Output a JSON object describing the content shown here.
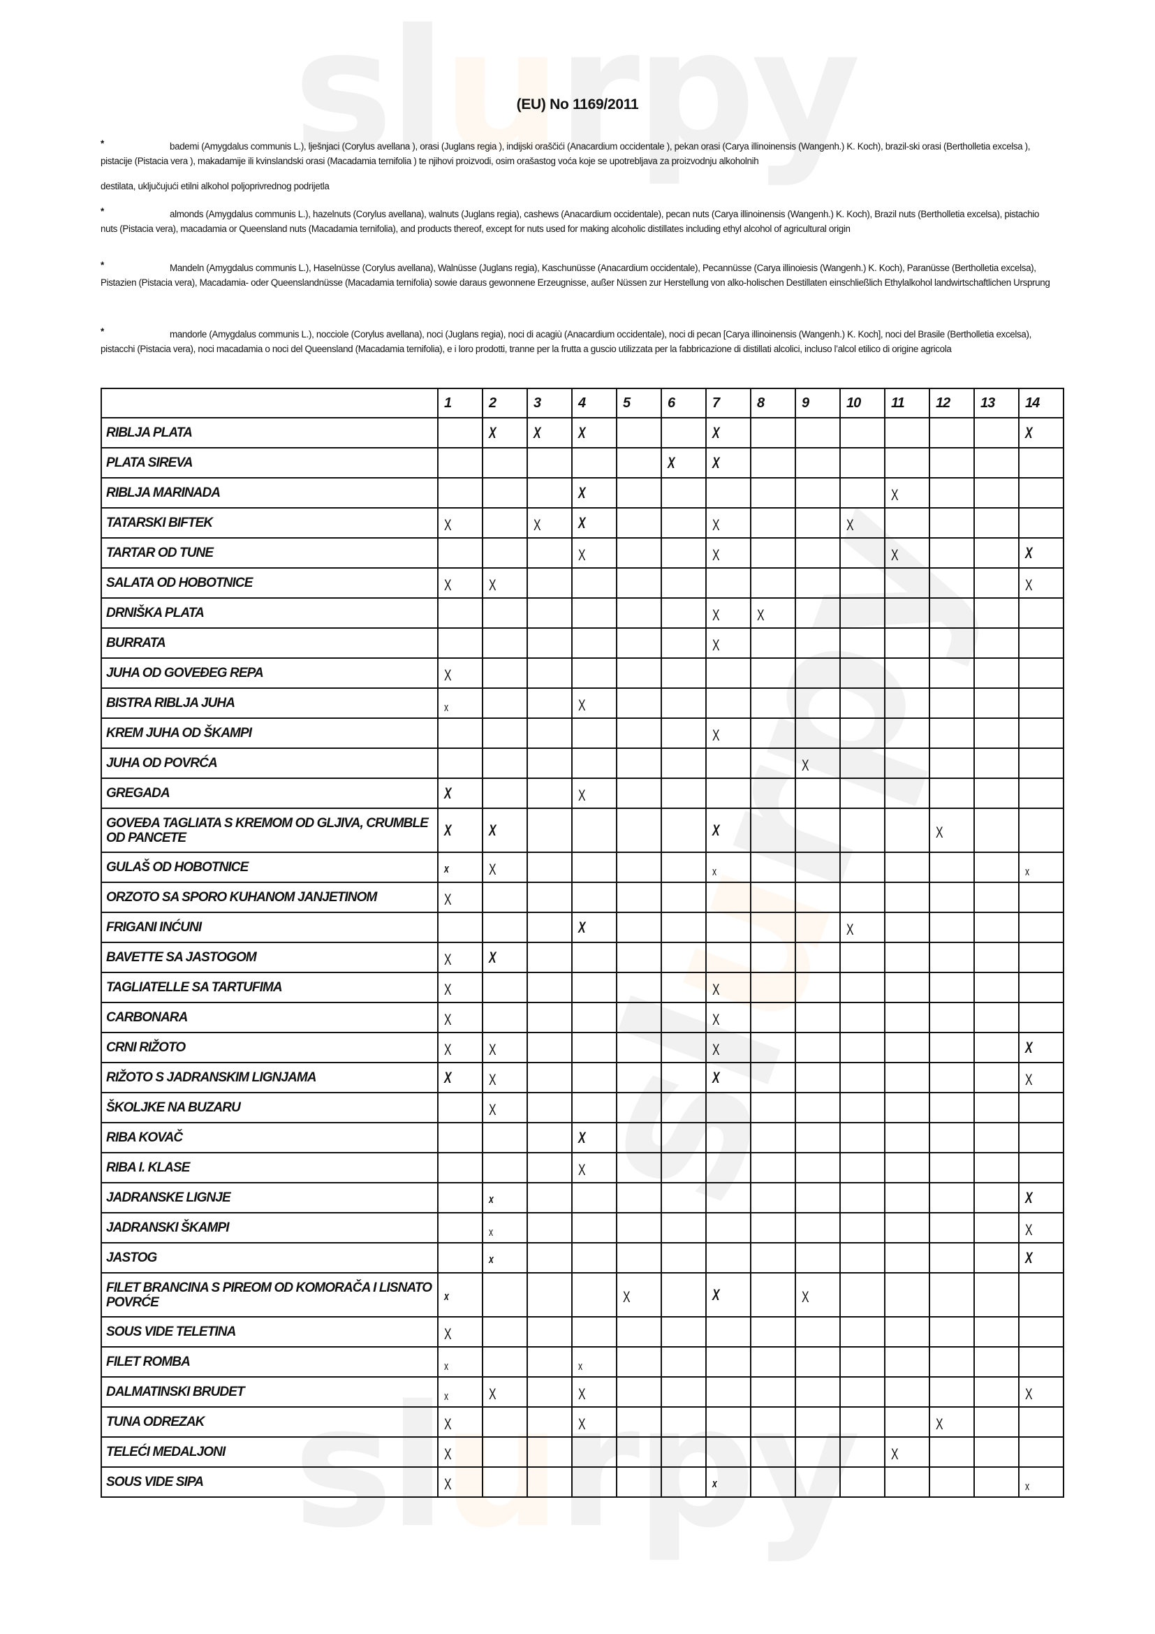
{
  "watermark": {
    "logo": "slurpy",
    "accent": "#f28c00"
  },
  "title": "(EU) No 1169/2011",
  "notes": [
    {
      "star": "*",
      "text": "bademi (Amygdalus communis L.), lješnjaci (Corylus avellana ), orasi (Juglans regia ), indijski oraščići (Anacardium occidentale ), pekan orasi (Carya illinoinensis (Wangenh.) K. Koch), brazil-ski orasi (Bertholletia excelsa ), pistacije (Pistacia vera ), makadamije ili kvinslandski orasi (Macadamia ternifolia ) te njihovi proizvodi, osim orašastog voća koje se upotrebljava za proizvodnju alkoholnih",
      "extra": "destilata, uključujući etilni alkohol poljoprivrednog podrijetla"
    },
    {
      "star": "*",
      "text": "almonds (Amygdalus communis L.), hazelnuts (Corylus avellana), walnuts (Juglans regia), cashews (Anacardium occidentale), pecan nuts (Carya illinoinensis (Wangenh.) K. Koch), Brazil nuts (Bertholletia excelsa), pistachio nuts (Pistacia vera), macadamia or Queensland nuts (Macadamia ternifolia), and products thereof, except for nuts used for making alcoholic distillates including ethyl alcohol of agricultural origin"
    },
    {
      "star": "*",
      "text": "Mandeln (Amygdalus communis L.), Haselnüsse (Corylus avellana), Walnüsse (Juglans regia), Kaschunüsse (Anacardium occidentale), Pecannüsse (Carya illinoiesis (Wangenh.) K. Koch), Paranüsse (Bertholletia excelsa), Pistazien (Pistacia vera), Macadamia- oder Queenslandnüsse (Macadamia ternifolia) sowie daraus gewonnene Erzeugnisse, außer Nüssen zur Herstellung von alko-holischen Destillaten einschließlich Ethylalkohol landwirtschaftlichen Ursprung"
    },
    {
      "star": "*",
      "text": "mandorle (Amygdalus communis L.), nocciole (Corylus avellana), noci (Juglans regia), noci di acagiù (Anacardium occidentale), noci di pecan [Carya illinoinensis (Wangenh.) K. Koch], noci del Brasile (Bertholletia excelsa), pistacchi (Pistacia vera), noci macadamia o noci del Queensland (Macadamia ternifolia), e i loro prodotti, tranne per la frutta a guscio utilizzata per la fabbricazione di distillati alcolici, incluso l’alcol etilico di origine agricola"
    }
  ],
  "table": {
    "columns": [
      "",
      "1",
      "2",
      "3",
      "4",
      "5",
      "6",
      "7",
      "8",
      "9",
      "10",
      "11",
      "12",
      "13",
      "14"
    ],
    "mark_legend": {
      "B": "bold italic X",
      "X": "regular X",
      "x": "small x",
      "b": "small bold x"
    },
    "rows": [
      {
        "name": "RIBLJA PLATA",
        "marks": "·BBB··B······B"
      },
      {
        "name": "PLATA SIREVA",
        "marks": "·····BB·······"
      },
      {
        "name": "RIBLJA MARINADA",
        "marks": "···B······X···"
      },
      {
        "name": "TATARSKI BIFTEK",
        "marks": "X·XB··X··X····"
      },
      {
        "name": "TARTAR OD TUNE",
        "marks": "···X··X···X··B"
      },
      {
        "name": "SALATA OD HOBOTNICE",
        "marks": "XX···········X"
      },
      {
        "name": "DRNIŠKA PLATA",
        "marks": "······XX······"
      },
      {
        "name": "BURRATA",
        "marks": "······X·······"
      },
      {
        "name": "JUHA OD GOVEĐEG REPA",
        "marks": "X·············"
      },
      {
        "name": "BISTRA RIBLJA JUHA",
        "marks": "x··X··········"
      },
      {
        "name": "KREM JUHA OD ŠKAMPI",
        "marks": "······X·······"
      },
      {
        "name": "JUHA OD POVRĆA",
        "marks": "········X·····"
      },
      {
        "name": "GREGADA",
        "marks": "B··X··········"
      },
      {
        "name": "GOVEĐA TAGLIATA S KREMOM OD GLJIVA, CRUMBLE OD PANCETE",
        "marks": "BB····B····X··",
        "double": true
      },
      {
        "name": "GULAŠ OD HOBOTNICE",
        "marks": "bX····x······x"
      },
      {
        "name": "ORZOTO SA SPORO KUHANOM JANJETINOM",
        "marks": "X·············"
      },
      {
        "name": "FRIGANI INĆUNI",
        "marks": "···B·····X····"
      },
      {
        "name": "BAVETTE SA JASTOGOM",
        "marks": "XB············"
      },
      {
        "name": "TAGLIATELLE SA TARTUFIMA",
        "marks": "X·····X·······"
      },
      {
        "name": "CARBONARA",
        "marks": "X·····X·······"
      },
      {
        "name": "CRNI RIŽOTO",
        "marks": "XX····X······B"
      },
      {
        "name": "RIŽOTO S JADRANSKIM LIGNJAMA",
        "marks": "BX····B······X"
      },
      {
        "name": "ŠKOLJKE NA BUZARU",
        "marks": "·X············"
      },
      {
        "name": "RIBA KOVAČ",
        "marks": "···B··········"
      },
      {
        "name": "RIBA I. KLASE",
        "marks": "···X··········"
      },
      {
        "name": "JADRANSKE LIGNJE",
        "marks": "·b···········B"
      },
      {
        "name": "JADRANSKI ŠKAMPI",
        "marks": "·x···········X"
      },
      {
        "name": "JASTOG",
        "marks": "·b···········B"
      },
      {
        "name": "FILET BRANCINA S PIREOM OD KOMORAČA I LISNATO POVRĆE",
        "marks": "b···X·B·X·····",
        "double": true
      },
      {
        "name": "SOUS VIDE TELETINA",
        "marks": "X·············"
      },
      {
        "name": "FILET ROMBA",
        "marks": "x··x··········"
      },
      {
        "name": "DALMATINSKI BRUDET",
        "marks": "xX·X·········X"
      },
      {
        "name": "TUNA ODREZAK",
        "marks": "X··X·······X··"
      },
      {
        "name": "TELEĆI MEDALJONI",
        "marks": "X·········X···"
      },
      {
        "name": "SOUS VIDE SIPA",
        "marks": "X·····b······x"
      }
    ]
  }
}
